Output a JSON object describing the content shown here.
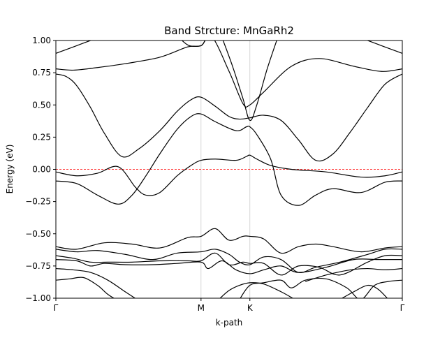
{
  "chart_data": {
    "type": "line",
    "title": "Band Strcture: MnGaRh2",
    "xlabel": "k-path",
    "ylabel": "Energy (eV)",
    "ylim": [
      -1.0,
      1.0
    ],
    "xlim": [
      0,
      1.0
    ],
    "yticks": [
      -1.0,
      -0.75,
      -0.5,
      -0.25,
      0.0,
      0.25,
      0.5,
      0.75,
      1.0
    ],
    "ytick_labels": [
      "−1.00",
      "−0.75",
      "−0.50",
      "−0.25",
      "0.00",
      "0.25",
      "0.50",
      "0.75",
      "1.00"
    ],
    "kpoints": [
      {
        "label": "Γ",
        "x": 0.0
      },
      {
        "label": "M",
        "x": 0.419
      },
      {
        "label": "K",
        "x": 0.56
      },
      {
        "label": "Γ",
        "x": 1.0
      }
    ],
    "fermi_level": 0.0,
    "fermi_color": "#ff0000",
    "line_color": "#000000",
    "grid": false,
    "series": [
      {
        "x": [
          0,
          0.03,
          0.06,
          0.1,
          0.14,
          0.19,
          0.24,
          0.3,
          0.35,
          0.39,
          0.419,
          0.46,
          0.5,
          0.53,
          0.56,
          0.6,
          0.65,
          0.7,
          0.75,
          0.8,
          0.85,
          0.9,
          0.95,
          1.0
        ],
        "y": [
          0.74,
          0.72,
          0.65,
          0.48,
          0.28,
          0.1,
          0.16,
          0.3,
          0.45,
          0.54,
          0.56,
          0.49,
          0.41,
          0.39,
          0.4,
          0.42,
          0.38,
          0.23,
          0.07,
          0.12,
          0.29,
          0.48,
          0.66,
          0.74
        ]
      },
      {
        "x": [
          0,
          0.05,
          0.12,
          0.2,
          0.3,
          0.38,
          0.419,
          0.45,
          0.5,
          0.54,
          0.56,
          0.6,
          0.68,
          0.76,
          0.86,
          0.94,
          1.0
        ],
        "y": [
          0.78,
          0.77,
          0.79,
          0.82,
          0.87,
          0.95,
          0.96,
          1.03,
          0.76,
          0.51,
          0.5,
          0.6,
          0.8,
          0.86,
          0.8,
          0.76,
          0.78
        ]
      },
      {
        "x": [
          0,
          0.03,
          0.06,
          0.09,
          0.12
        ],
        "y": [
          0.9,
          0.93,
          0.96,
          0.99,
          1.02
        ]
      },
      {
        "x": [
          0.88,
          0.91,
          0.94,
          0.97,
          1.0
        ],
        "y": [
          1.02,
          0.99,
          0.96,
          0.93,
          0.9
        ]
      },
      {
        "x": [
          0.36,
          0.385,
          0.419,
          0.43
        ],
        "y": [
          1.01,
          0.96,
          0.96,
          1.0
        ]
      },
      {
        "x": [
          0.48,
          0.51,
          0.54,
          0.56,
          0.58,
          0.61,
          0.64
        ],
        "y": [
          1.02,
          0.8,
          0.55,
          0.38,
          0.5,
          0.78,
          1.02
        ]
      },
      {
        "x": [
          0,
          0.06,
          0.12,
          0.18,
          0.23,
          0.26,
          0.3,
          0.35,
          0.39,
          0.419,
          0.46,
          0.52,
          0.55,
          0.56,
          0.58,
          0.62,
          0.68,
          0.78,
          0.88,
          0.95,
          1.0
        ],
        "y": [
          -0.02,
          -0.05,
          -0.03,
          0.02,
          -0.14,
          -0.2,
          -0.18,
          -0.05,
          0.03,
          0.07,
          0.08,
          0.07,
          0.1,
          0.11,
          0.08,
          0.03,
          0.0,
          -0.02,
          -0.06,
          -0.05,
          -0.02
        ]
      },
      {
        "x": [
          0,
          0.06,
          0.12,
          0.18,
          0.22,
          0.26,
          0.3,
          0.35,
          0.39,
          0.419,
          0.46,
          0.52,
          0.55,
          0.56,
          0.58,
          0.62,
          0.65,
          0.7,
          0.75,
          0.8,
          0.88,
          0.95,
          1.0
        ],
        "y": [
          -0.09,
          -0.11,
          -0.2,
          -0.27,
          -0.2,
          -0.05,
          0.12,
          0.31,
          0.41,
          0.43,
          0.37,
          0.3,
          0.33,
          0.33,
          0.27,
          0.08,
          -0.2,
          -0.28,
          -0.2,
          -0.15,
          -0.18,
          -0.1,
          -0.09
        ]
      },
      {
        "x": [
          0,
          0.06,
          0.14,
          0.22,
          0.3,
          0.38,
          0.419,
          0.46,
          0.5,
          0.54,
          0.56,
          0.6,
          0.65,
          0.7,
          0.75,
          0.8,
          0.88,
          0.95,
          1.0
        ],
        "y": [
          -0.6,
          -0.62,
          -0.57,
          -0.58,
          -0.61,
          -0.53,
          -0.52,
          -0.46,
          -0.55,
          -0.52,
          -0.52,
          -0.54,
          -0.65,
          -0.6,
          -0.58,
          -0.6,
          -0.64,
          -0.61,
          -0.6
        ]
      },
      {
        "x": [
          0,
          0.06,
          0.12,
          0.2,
          0.28,
          0.35,
          0.419,
          0.46,
          0.5,
          0.53,
          0.56,
          0.6,
          0.65,
          0.7,
          0.75,
          0.82,
          0.9,
          0.95,
          1.0
        ],
        "y": [
          -0.62,
          -0.64,
          -0.63,
          -0.66,
          -0.7,
          -0.65,
          -0.64,
          -0.62,
          -0.66,
          -0.72,
          -0.74,
          -0.68,
          -0.7,
          -0.8,
          -0.76,
          -0.72,
          -0.66,
          -0.62,
          -0.62
        ]
      },
      {
        "x": [
          0,
          0.05,
          0.1,
          0.15,
          0.22,
          0.3,
          0.38,
          0.419,
          0.46,
          0.5,
          0.54,
          0.56,
          0.6,
          0.65,
          0.7,
          0.76,
          0.82,
          0.9,
          0.95,
          1.0
        ],
        "y": [
          -0.67,
          -0.69,
          -0.72,
          -0.72,
          -0.72,
          -0.71,
          -0.71,
          -0.71,
          -0.65,
          -0.74,
          -0.72,
          -0.73,
          -0.73,
          -0.82,
          -0.75,
          -0.76,
          -0.82,
          -0.72,
          -0.67,
          -0.67
        ]
      },
      {
        "x": [
          0,
          0.06,
          0.1,
          0.14,
          0.2,
          0.28,
          0.35,
          0.419,
          0.44,
          0.48,
          0.52,
          0.56,
          0.6,
          0.65,
          0.7,
          0.78,
          0.86,
          0.93,
          1.0
        ],
        "y": [
          -0.7,
          -0.71,
          -0.75,
          -0.73,
          -0.74,
          -0.74,
          -0.73,
          -0.72,
          -0.77,
          -0.71,
          -0.78,
          -0.81,
          -0.78,
          -0.75,
          -0.8,
          -0.76,
          -0.7,
          -0.7,
          -0.7
        ]
      },
      {
        "x": [
          0,
          0.05,
          0.1,
          0.15,
          0.2,
          0.24
        ],
        "y": [
          -0.77,
          -0.78,
          -0.8,
          -0.86,
          -0.95,
          -1.02
        ]
      },
      {
        "x": [
          0.72,
          0.78,
          0.85,
          0.9,
          0.95,
          1.0
        ],
        "y": [
          -0.87,
          -0.82,
          -0.78,
          -0.77,
          -0.78,
          -0.77
        ]
      },
      {
        "x": [
          0,
          0.04,
          0.08,
          0.12,
          0.15,
          0.18
        ],
        "y": [
          -0.86,
          -0.85,
          -0.84,
          -0.9,
          -0.97,
          -1.02
        ]
      },
      {
        "x": [
          0.53,
          0.56,
          0.6,
          0.65,
          0.68,
          0.72,
          0.78,
          0.84,
          0.88,
          0.92,
          0.96,
          1.0
        ],
        "y": [
          -1.01,
          -0.9,
          -0.88,
          -0.86,
          -0.92,
          -0.86,
          -0.85,
          -0.92,
          -1.01,
          -0.9,
          -0.87,
          -0.86
        ]
      },
      {
        "x": [
          0.47,
          0.5,
          0.53,
          0.56,
          0.6,
          0.65,
          0.69
        ],
        "y": [
          -1.01,
          -0.94,
          -0.9,
          -0.88,
          -0.89,
          -0.95,
          -1.01
        ]
      },
      {
        "x": [
          0.82,
          0.86,
          0.9,
          0.93,
          0.96
        ],
        "y": [
          -1.01,
          -0.95,
          -0.9,
          -0.93,
          -1.01
        ]
      }
    ]
  }
}
